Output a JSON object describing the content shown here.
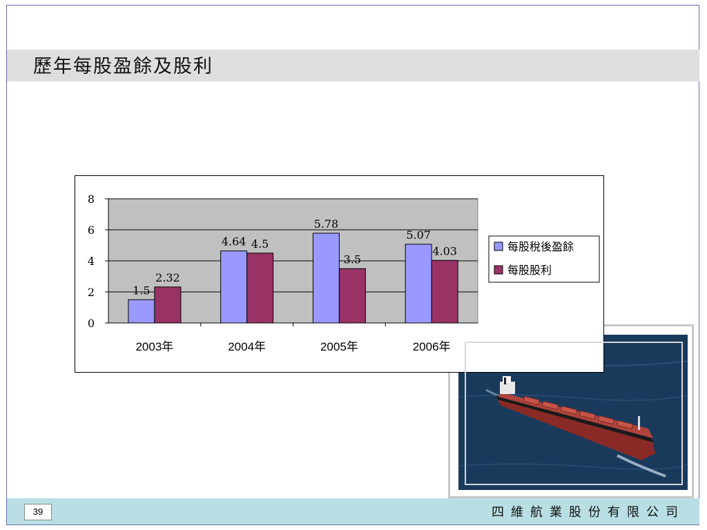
{
  "slide": {
    "title": "歷年每股盈餘及股利",
    "page_number": "39",
    "company": "四維航業股份有限公司"
  },
  "colors": {
    "title_bar": "#dedede",
    "footer_bar": "#b9dfe4",
    "plot_area": "#c0c0c0",
    "series_eps": "#9999ff",
    "series_dividend": "#993366"
  },
  "photo": {
    "icon": "ship-photo"
  },
  "chart_data": {
    "type": "bar",
    "title": "",
    "xlabel": "",
    "ylabel": "",
    "categories": [
      "2003年",
      "2004年",
      "2005年",
      "2006年"
    ],
    "series": [
      {
        "name": "每股稅後盈餘",
        "values": [
          1.5,
          4.64,
          5.78,
          5.07
        ],
        "labels": [
          "1.5",
          "4.64",
          "5.78",
          "5.07"
        ],
        "color": "#9999ff"
      },
      {
        "name": "每股股利",
        "values": [
          2.32,
          4.5,
          3.5,
          4.03
        ],
        "labels": [
          "2.32",
          "4.5",
          "3.5",
          "4.03"
        ],
        "color": "#993366"
      }
    ],
    "ylim": [
      0,
      8
    ],
    "yticks": [
      "0",
      "2",
      "4",
      "6",
      "8"
    ],
    "grid": true,
    "legend": "right"
  }
}
